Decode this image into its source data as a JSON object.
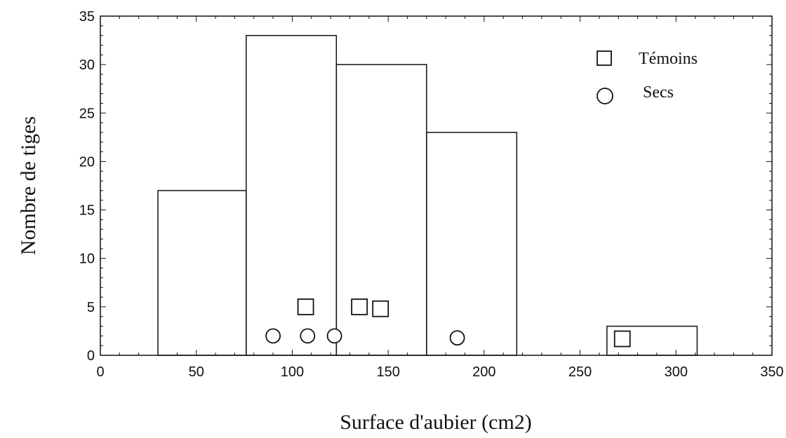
{
  "chart_data": {
    "type": "bar",
    "xlabel": "Surface d'aubier (cm2)",
    "ylabel": "Nombre de tiges",
    "xlim": [
      0,
      350
    ],
    "ylim": [
      0,
      35
    ],
    "xticks": [
      "0",
      "50",
      "100",
      "150",
      "200",
      "250",
      "300",
      "350"
    ],
    "yticks": [
      "0",
      "5",
      "10",
      "15",
      "20",
      "25",
      "30",
      "35"
    ],
    "grid": false,
    "legend_position": "top-right",
    "histogram": {
      "bins": [
        {
          "x0": 30,
          "x1": 76,
          "count": 17
        },
        {
          "x0": 76,
          "x1": 123,
          "count": 33
        },
        {
          "x0": 123,
          "x1": 170,
          "count": 30
        },
        {
          "x0": 170,
          "x1": 217,
          "count": 23
        },
        {
          "x0": 217,
          "x1": 264,
          "count": 0
        },
        {
          "x0": 264,
          "x1": 311,
          "count": 3
        }
      ]
    },
    "series": [
      {
        "name": "Témoins",
        "marker": "square",
        "points": [
          {
            "x": 107,
            "y": 5
          },
          {
            "x": 135,
            "y": 5
          },
          {
            "x": 146,
            "y": 4.8
          },
          {
            "x": 272,
            "y": 1.7
          }
        ]
      },
      {
        "name": "Secs",
        "marker": "circle",
        "points": [
          {
            "x": 90,
            "y": 2
          },
          {
            "x": 108,
            "y": 2
          },
          {
            "x": 122,
            "y": 2
          },
          {
            "x": 186,
            "y": 1.8
          }
        ]
      }
    ]
  }
}
